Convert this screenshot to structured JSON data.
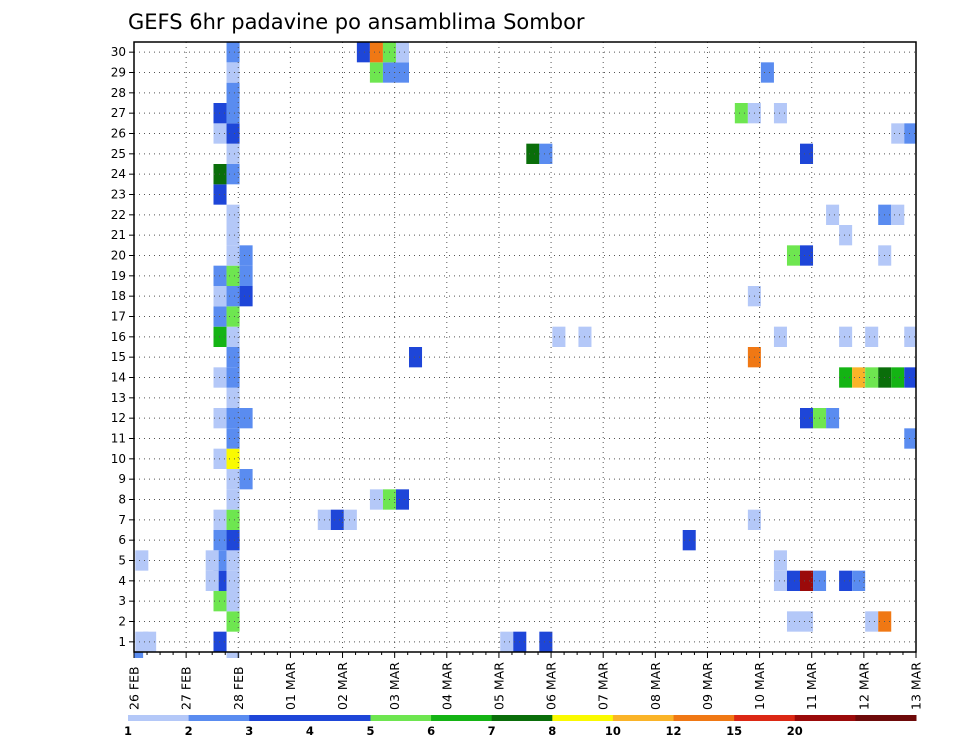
{
  "chart_data": {
    "type": "heatmap",
    "title": "GEFS 6hr padavine po ansamblima Sombor",
    "xlabel": "",
    "ylabel": "",
    "x_ticks": [
      "26 FEB",
      "27 FEB",
      "28 FEB",
      "01 MAR",
      "02 MAR",
      "03 MAR",
      "04 MAR",
      "05 MAR",
      "06 MAR",
      "07 MAR",
      "08 MAR",
      "09 MAR",
      "10 MAR",
      "11 MAR",
      "12 MAR",
      "13 MAR"
    ],
    "y_ticks": [
      "1",
      "2",
      "3",
      "4",
      "5",
      "6",
      "7",
      "8",
      "9",
      "10",
      "11",
      "12",
      "13",
      "14",
      "15",
      "16",
      "17",
      "18",
      "19",
      "20",
      "21",
      "22",
      "23",
      "24",
      "25",
      "26",
      "27",
      "28",
      "29",
      "30"
    ],
    "x_range_days": [
      0,
      15
    ],
    "time_step_hours": 6,
    "ylim": [
      0.5,
      30.5
    ],
    "grid": true,
    "legend": "bottom colorbar",
    "colorbar": {
      "labels": [
        "1",
        "2",
        "3",
        "4",
        "5",
        "6",
        "7",
        "8",
        "10",
        "12",
        "15",
        "20"
      ],
      "colors": [
        "#b4c8f8",
        "#5a8cf0",
        "#1e46d8",
        "#1e46d8",
        "#6ee650",
        "#14b414",
        "#0a6e0a",
        "#fafa00",
        "#fab428",
        "#f07814",
        "#dc2814",
        "#9b0a0a",
        "#6e0a0a"
      ]
    },
    "value_colors": {
      "1": "#b4c8f8",
      "2": "#5a8cf0",
      "3": "#1e46d8",
      "5": "#6ee650",
      "6": "#14b414",
      "7": "#0a6e0a",
      "8": "#fafa00",
      "10": "#fab428",
      "12": "#f07814",
      "20": "#9b0a0a"
    },
    "cells": [
      [
        0.15,
        1,
        1
      ],
      [
        0.3,
        1,
        1
      ],
      [
        0.15,
        5,
        1
      ],
      [
        0.05,
        0,
        2
      ],
      [
        1.65,
        1,
        3
      ],
      [
        1.65,
        3,
        5
      ],
      [
        1.65,
        4,
        3
      ],
      [
        1.65,
        5,
        2
      ],
      [
        1.65,
        6,
        2
      ],
      [
        1.65,
        7,
        1
      ],
      [
        1.65,
        10,
        1
      ],
      [
        1.65,
        12,
        1
      ],
      [
        1.65,
        14,
        1
      ],
      [
        1.65,
        16,
        6
      ],
      [
        1.65,
        17,
        2
      ],
      [
        1.65,
        18,
        1
      ],
      [
        1.65,
        19,
        2
      ],
      [
        1.65,
        23,
        3
      ],
      [
        1.65,
        24,
        7
      ],
      [
        1.65,
        26,
        1
      ],
      [
        1.65,
        27,
        3
      ],
      [
        1.5,
        4,
        1
      ],
      [
        1.5,
        5,
        1
      ],
      [
        1.9,
        0,
        1
      ],
      [
        1.9,
        2,
        5
      ],
      [
        1.9,
        3,
        1
      ],
      [
        1.9,
        4,
        1
      ],
      [
        1.9,
        5,
        1
      ],
      [
        1.9,
        6,
        3
      ],
      [
        1.9,
        7,
        5
      ],
      [
        1.9,
        8,
        1
      ],
      [
        1.9,
        9,
        1
      ],
      [
        1.9,
        10,
        8
      ],
      [
        1.9,
        11,
        2
      ],
      [
        1.9,
        12,
        2
      ],
      [
        1.9,
        13,
        1
      ],
      [
        1.9,
        14,
        2
      ],
      [
        1.9,
        15,
        2
      ],
      [
        1.9,
        16,
        1
      ],
      [
        1.9,
        17,
        5
      ],
      [
        1.9,
        18,
        2
      ],
      [
        1.9,
        19,
        5
      ],
      [
        1.9,
        20,
        1
      ],
      [
        1.9,
        21,
        1
      ],
      [
        1.9,
        22,
        1
      ],
      [
        1.9,
        24,
        2
      ],
      [
        1.9,
        25,
        1
      ],
      [
        1.9,
        26,
        3
      ],
      [
        1.9,
        27,
        2
      ],
      [
        1.9,
        28,
        2
      ],
      [
        1.9,
        29,
        1
      ],
      [
        1.9,
        30,
        2
      ],
      [
        2.15,
        9,
        2
      ],
      [
        2.15,
        12,
        2
      ],
      [
        2.15,
        18,
        3
      ],
      [
        2.15,
        19,
        2
      ],
      [
        2.15,
        20,
        2
      ],
      [
        3.65,
        7,
        1
      ],
      [
        3.9,
        7,
        3
      ],
      [
        4.15,
        7,
        1
      ],
      [
        4.4,
        30,
        3
      ],
      [
        4.65,
        8,
        1
      ],
      [
        4.65,
        29,
        5
      ],
      [
        4.65,
        30,
        12
      ],
      [
        4.9,
        8,
        5
      ],
      [
        4.9,
        29,
        2
      ],
      [
        4.9,
        30,
        5
      ],
      [
        5.15,
        8,
        3
      ],
      [
        5.15,
        29,
        2
      ],
      [
        5.15,
        30,
        1
      ],
      [
        5.4,
        15,
        3
      ],
      [
        7.15,
        1,
        1
      ],
      [
        7.4,
        1,
        3
      ],
      [
        7.65,
        25,
        7
      ],
      [
        7.9,
        1,
        3
      ],
      [
        7.9,
        25,
        2
      ],
      [
        8.15,
        16,
        1
      ],
      [
        8.65,
        16,
        1
      ],
      [
        10.65,
        6,
        3
      ],
      [
        11.65,
        27,
        5
      ],
      [
        11.9,
        7,
        1
      ],
      [
        11.9,
        15,
        12
      ],
      [
        11.9,
        18,
        1
      ],
      [
        11.9,
        27,
        1
      ],
      [
        12.15,
        29,
        2
      ],
      [
        12.4,
        4,
        1
      ],
      [
        12.4,
        5,
        1
      ],
      [
        12.4,
        16,
        1
      ],
      [
        12.4,
        27,
        1
      ],
      [
        12.65,
        2,
        1
      ],
      [
        12.65,
        4,
        3
      ],
      [
        12.65,
        20,
        5
      ],
      [
        12.9,
        2,
        1
      ],
      [
        12.9,
        4,
        20
      ],
      [
        12.9,
        12,
        3
      ],
      [
        12.9,
        20,
        3
      ],
      [
        12.9,
        25,
        3
      ],
      [
        13.15,
        4,
        2
      ],
      [
        13.15,
        12,
        5
      ],
      [
        13.4,
        12,
        2
      ],
      [
        13.4,
        22,
        1
      ],
      [
        13.65,
        4,
        3
      ],
      [
        13.65,
        14,
        6
      ],
      [
        13.65,
        16,
        1
      ],
      [
        13.65,
        21,
        1
      ],
      [
        13.9,
        4,
        2
      ],
      [
        13.9,
        14,
        10
      ],
      [
        14.15,
        2,
        1
      ],
      [
        14.15,
        14,
        5
      ],
      [
        14.15,
        16,
        1
      ],
      [
        14.4,
        2,
        12
      ],
      [
        14.4,
        14,
        7
      ],
      [
        14.4,
        20,
        1
      ],
      [
        14.4,
        22,
        2
      ],
      [
        14.65,
        14,
        6
      ],
      [
        14.65,
        22,
        1
      ],
      [
        14.65,
        26,
        1
      ],
      [
        14.9,
        11,
        2
      ],
      [
        14.9,
        14,
        3
      ],
      [
        14.9,
        16,
        1
      ],
      [
        14.9,
        26,
        2
      ]
    ]
  }
}
